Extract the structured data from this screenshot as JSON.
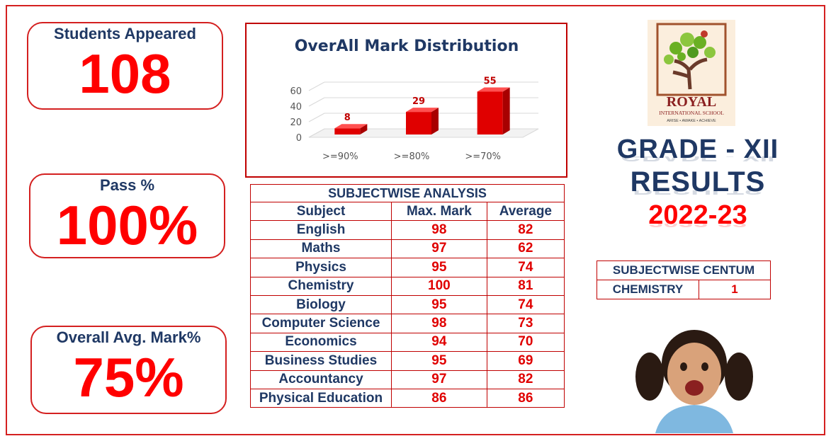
{
  "stats": {
    "students_label": "Students Appeared",
    "students_value": "108",
    "pass_label": "Pass %",
    "pass_value": "100%",
    "avg_label": "Overall Avg. Mark%",
    "avg_value": "75%"
  },
  "chart_data": {
    "type": "bar",
    "title": "OverAll Mark Distribution",
    "categories": [
      ">=90%",
      ">=80%",
      ">=70%"
    ],
    "values": [
      8,
      29,
      55
    ],
    "ylim": [
      0,
      60
    ],
    "yticks": [
      0,
      20,
      40,
      60
    ],
    "bar_color": "#e00000",
    "grid": true
  },
  "subjectwise": {
    "title": "SUBJECTWISE ANALYSIS",
    "headers": [
      "Subject",
      "Max. Mark",
      "Average"
    ],
    "rows": [
      [
        "English",
        "98",
        "82"
      ],
      [
        "Maths",
        "97",
        "62"
      ],
      [
        "Physics",
        "95",
        "74"
      ],
      [
        "Chemistry",
        "100",
        "81"
      ],
      [
        "Biology",
        "95",
        "74"
      ],
      [
        "Computer Science",
        "98",
        "73"
      ],
      [
        "Economics",
        "94",
        "70"
      ],
      [
        "Business Studies",
        "95",
        "69"
      ],
      [
        "Accountancy",
        "97",
        "82"
      ],
      [
        "Physical Education",
        "86",
        "86"
      ]
    ]
  },
  "centum": {
    "title": "SUBJECTWISE CENTUM",
    "subject": "CHEMISTRY",
    "count": "1"
  },
  "logo": {
    "name": "ROYAL",
    "subtitle": "INTERNATIONAL SCHOOL",
    "tagline": "ARISE • AWAKE • ACHIEVE"
  },
  "headline": {
    "grade": "GRADE - XII",
    "results": "RESULTS",
    "year": "2022-23"
  },
  "colors": {
    "accent_red": "#ff0000",
    "border_red": "#c00000",
    "navy": "#1f3864"
  }
}
